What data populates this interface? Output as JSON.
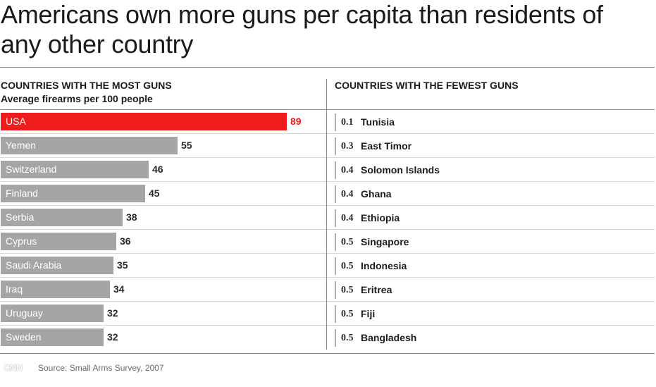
{
  "title": "Americans own more guns per capita than residents of any other country",
  "left_header": "COUNTRIES WITH THE MOST GUNS",
  "left_subheader": "Average firearms per 100 people",
  "right_header": "COUNTRIES WITH THE FEWEST GUNS",
  "source": "Source: Small Arms Survey, 2007",
  "logo": "CNN",
  "colors": {
    "highlight": "#ee1c1c",
    "bar": "#a5a5a5"
  },
  "chart_data": [
    {
      "type": "bar",
      "orientation": "horizontal",
      "title": "COUNTRIES WITH THE MOST GUNS",
      "subtitle": "Average firearms per 100 people",
      "categories": [
        "USA",
        "Yemen",
        "Switzerland",
        "Finland",
        "Serbia",
        "Cyprus",
        "Saudi Arabia",
        "Iraq",
        "Uruguay",
        "Sweden"
      ],
      "values": [
        89,
        55,
        46,
        45,
        38,
        36,
        35,
        34,
        32,
        32
      ],
      "highlight": "USA",
      "xlim": [
        0,
        89
      ]
    },
    {
      "type": "table",
      "title": "COUNTRIES WITH THE FEWEST GUNS",
      "categories": [
        "Tunisia",
        "East Timor",
        "Solomon Islands",
        "Ghana",
        "Ethiopia",
        "Singapore",
        "Indonesia",
        "Eritrea",
        "Fiji",
        "Bangladesh"
      ],
      "values": [
        "0.1",
        "0.3",
        "0.4",
        "0.4",
        "0.4",
        "0.5",
        "0.5",
        "0.5",
        "0.5",
        "0.5"
      ]
    }
  ]
}
